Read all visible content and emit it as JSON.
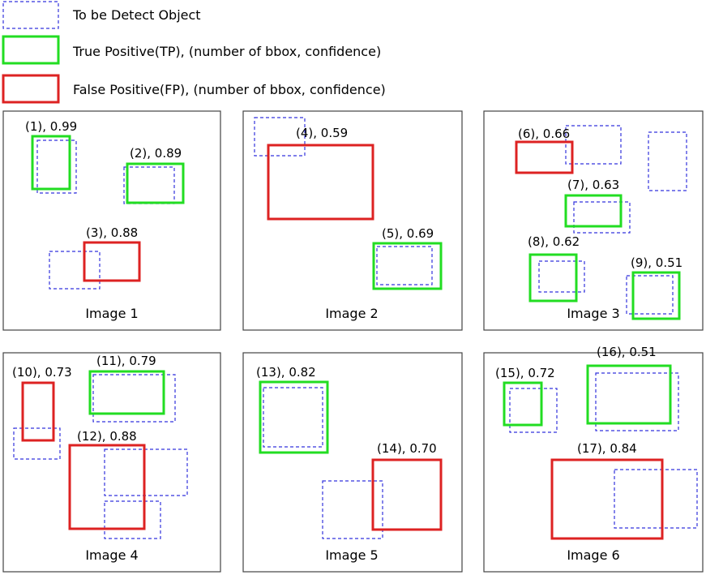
{
  "legend": {
    "items": [
      {
        "kind": "target",
        "label": "To be Detect Object"
      },
      {
        "kind": "tp",
        "label": "True Positive(TP), (number of bbox, confidence)"
      },
      {
        "kind": "fp",
        "label": "False Positive(FP), (number of bbox, confidence)"
      }
    ]
  },
  "colors": {
    "target": "#3333dd",
    "tp": "#22dd22",
    "fp": "#dd2222",
    "frame": "#444444"
  },
  "images": [
    {
      "title": "Image 1",
      "detections": [
        {
          "label": "(1), 0.99",
          "type": "tp"
        },
        {
          "label": "(2), 0.89",
          "type": "tp"
        },
        {
          "label": "(3), 0.88",
          "type": "fp"
        }
      ]
    },
    {
      "title": "Image 2",
      "detections": [
        {
          "label": "(4), 0.59",
          "type": "fp"
        },
        {
          "label": "(5), 0.69",
          "type": "tp"
        }
      ]
    },
    {
      "title": "Image 3",
      "detections": [
        {
          "label": "(6), 0.66",
          "type": "fp"
        },
        {
          "label": "(7), 0.63",
          "type": "tp"
        },
        {
          "label": "(8), 0.62",
          "type": "tp"
        },
        {
          "label": "(9), 0.51",
          "type": "tp"
        }
      ]
    },
    {
      "title": "Image 4",
      "detections": [
        {
          "label": "(10), 0.73",
          "type": "fp"
        },
        {
          "label": "(11), 0.79",
          "type": "tp"
        },
        {
          "label": "(12), 0.88",
          "type": "fp"
        }
      ]
    },
    {
      "title": "Image 5",
      "detections": [
        {
          "label": "(13), 0.82",
          "type": "tp"
        },
        {
          "label": "(14), 0.70",
          "type": "fp"
        }
      ]
    },
    {
      "title": "Image 6",
      "detections": [
        {
          "label": "(15), 0.72",
          "type": "tp"
        },
        {
          "label": "(16), 0.51",
          "type": "tp"
        },
        {
          "label": "(17), 0.84",
          "type": "fp"
        }
      ]
    }
  ]
}
